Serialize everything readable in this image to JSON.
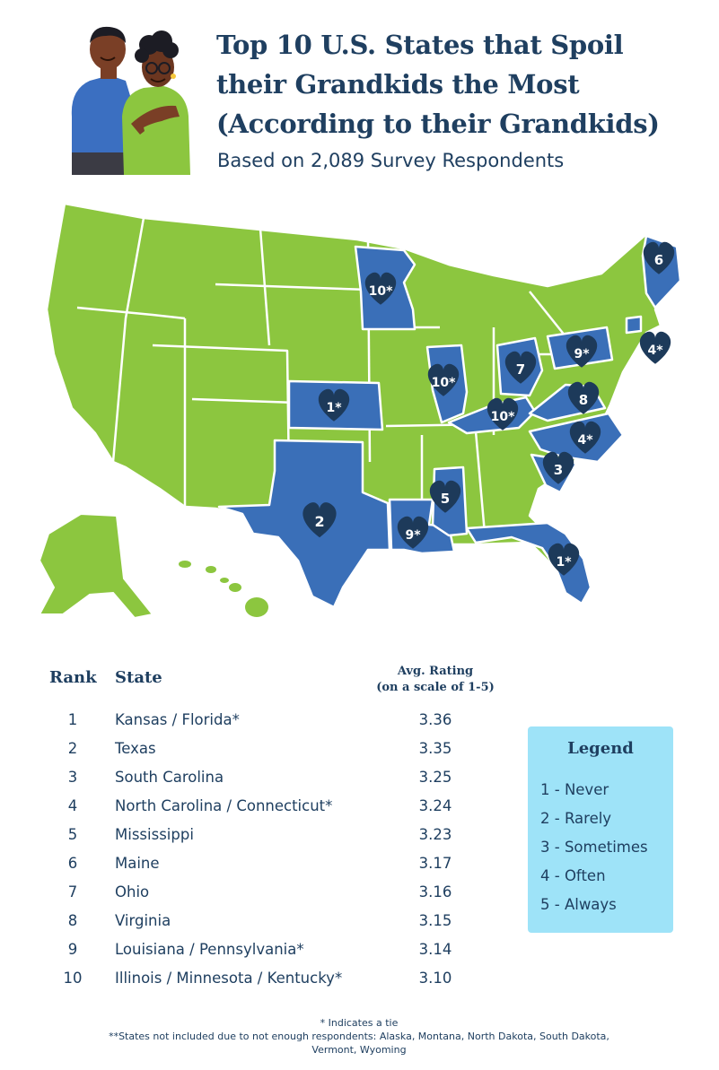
{
  "header": {
    "title_line1": "Top 10 U.S. States that Spoil",
    "title_line2": "their Grandkids the Most",
    "title_line3": "(According to their Grandkids)",
    "subtitle": "Based on 2,089 Survey Respondents"
  },
  "colors": {
    "green": "#8cc63f",
    "blue": "#3a6fb8",
    "heart": "#1d3a5a",
    "legend_bg": "#9ee3f8",
    "text": "#1f3f60"
  },
  "map_labels": {
    "kansas": "1*",
    "florida": "1*",
    "texas": "2",
    "south_carolina": "3",
    "north_carolina": "4*",
    "connecticut": "4*",
    "mississippi": "5",
    "maine": "6",
    "ohio": "7",
    "virginia": "8",
    "louisiana": "9*",
    "pennsylvania": "9*",
    "illinois": "10*",
    "minnesota": "10*",
    "kentucky": "10*"
  },
  "table": {
    "col_rank": "Rank",
    "col_state": "State",
    "col_rating_line1": "Avg. Rating",
    "col_rating_line2": "(on a scale of 1-5)",
    "rows": [
      {
        "rank": "1",
        "state": "Kansas / Florida*",
        "rating": "3.36"
      },
      {
        "rank": "2",
        "state": "Texas",
        "rating": "3.35"
      },
      {
        "rank": "3",
        "state": "South Carolina",
        "rating": "3.25"
      },
      {
        "rank": "4",
        "state": "North Carolina / Connecticut*",
        "rating": "3.24"
      },
      {
        "rank": "5",
        "state": "Mississippi",
        "rating": "3.23"
      },
      {
        "rank": "6",
        "state": "Maine",
        "rating": "3.17"
      },
      {
        "rank": "7",
        "state": "Ohio",
        "rating": "3.16"
      },
      {
        "rank": "8",
        "state": "Virginia",
        "rating": "3.15"
      },
      {
        "rank": "9",
        "state": "Louisiana / Pennsylvania*",
        "rating": "3.14"
      },
      {
        "rank": "10",
        "state": "Illinois / Minnesota / Kentucky*",
        "rating": "3.10"
      }
    ]
  },
  "legend": {
    "title": "Legend",
    "items": [
      "1 - Never",
      "2 - Rarely",
      "3 - Sometimes",
      "4 - Often",
      "5 - Always"
    ]
  },
  "footnotes": {
    "tie": "* Indicates a tie",
    "excluded": "**States not included due to not enough respondents: Alaska, Montana, North Dakota, South Dakota, Vermont, Wyoming"
  }
}
